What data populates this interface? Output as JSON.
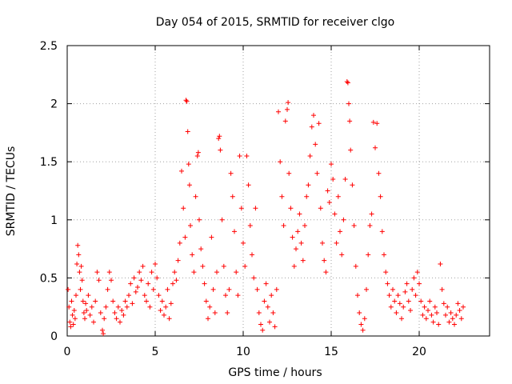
{
  "chart_data": {
    "type": "scatter",
    "title": "Day 054 of 2015, SRMTID for receiver clgo",
    "xlabel": "GPS time / hours",
    "ylabel": "SRMTID / TECUs",
    "xlim": [
      0,
      24
    ],
    "ylim": [
      0,
      2.5
    ],
    "x_ticks": [
      0,
      5,
      10,
      15,
      20
    ],
    "x_tick_labels": [
      "0",
      "5",
      "10",
      "15",
      "20"
    ],
    "y_ticks": [
      0,
      0.5,
      1,
      1.5,
      2,
      2.5
    ],
    "y_tick_labels": [
      "0",
      "0.5",
      "1",
      "1.5",
      "2",
      "2.5"
    ],
    "grid": true,
    "marker": "+",
    "color": "#ff0000",
    "series": [
      {
        "name": "SRMTID",
        "points": [
          [
            0.05,
            0.4
          ],
          [
            0.1,
            0.25
          ],
          [
            0.15,
            0.12
          ],
          [
            0.2,
            0.08
          ],
          [
            0.25,
            0.3
          ],
          [
            0.3,
            0.18
          ],
          [
            0.35,
            0.1
          ],
          [
            0.4,
            0.22
          ],
          [
            0.45,
            0.15
          ],
          [
            0.5,
            0.35
          ],
          [
            0.55,
            0.62
          ],
          [
            0.6,
            0.78
          ],
          [
            0.65,
            0.7
          ],
          [
            0.7,
            0.55
          ],
          [
            0.75,
            0.4
          ],
          [
            0.8,
            0.6
          ],
          [
            0.85,
            0.48
          ],
          [
            0.9,
            0.3
          ],
          [
            0.95,
            0.2
          ],
          [
            1.0,
            0.15
          ],
          [
            1.05,
            0.28
          ],
          [
            1.1,
            0.22
          ],
          [
            1.2,
            0.35
          ],
          [
            1.3,
            0.18
          ],
          [
            1.4,
            0.25
          ],
          [
            1.5,
            0.12
          ],
          [
            1.6,
            0.3
          ],
          [
            1.7,
            0.55
          ],
          [
            1.8,
            0.48
          ],
          [
            1.9,
            0.2
          ],
          [
            2.0,
            0.05
          ],
          [
            2.05,
            0.02
          ],
          [
            2.1,
            0.15
          ],
          [
            2.2,
            0.25
          ],
          [
            2.3,
            0.4
          ],
          [
            2.4,
            0.55
          ],
          [
            2.5,
            0.48
          ],
          [
            2.6,
            0.3
          ],
          [
            2.7,
            0.2
          ],
          [
            2.8,
            0.15
          ],
          [
            2.9,
            0.25
          ],
          [
            3.0,
            0.12
          ],
          [
            3.1,
            0.22
          ],
          [
            3.2,
            0.18
          ],
          [
            3.3,
            0.3
          ],
          [
            3.4,
            0.25
          ],
          [
            3.5,
            0.35
          ],
          [
            3.6,
            0.45
          ],
          [
            3.7,
            0.28
          ],
          [
            3.8,
            0.5
          ],
          [
            3.9,
            0.38
          ],
          [
            4.0,
            0.42
          ],
          [
            4.1,
            0.55
          ],
          [
            4.2,
            0.48
          ],
          [
            4.3,
            0.6
          ],
          [
            4.4,
            0.35
          ],
          [
            4.5,
            0.3
          ],
          [
            4.6,
            0.45
          ],
          [
            4.7,
            0.25
          ],
          [
            4.8,
            0.55
          ],
          [
            4.9,
            0.4
          ],
          [
            5.0,
            0.62
          ],
          [
            5.1,
            0.5
          ],
          [
            5.2,
            0.35
          ],
          [
            5.3,
            0.22
          ],
          [
            5.4,
            0.3
          ],
          [
            5.5,
            0.18
          ],
          [
            5.6,
            0.25
          ],
          [
            5.7,
            0.4
          ],
          [
            5.8,
            0.15
          ],
          [
            5.9,
            0.28
          ],
          [
            6.0,
            0.45
          ],
          [
            6.1,
            0.55
          ],
          [
            6.2,
            0.48
          ],
          [
            6.3,
            0.65
          ],
          [
            6.4,
            0.8
          ],
          [
            6.5,
            1.42
          ],
          [
            6.6,
            1.1
          ],
          [
            6.7,
            0.85
          ],
          [
            6.75,
            2.03
          ],
          [
            6.8,
            2.02
          ],
          [
            6.85,
            1.76
          ],
          [
            6.9,
            1.48
          ],
          [
            6.95,
            1.3
          ],
          [
            7.0,
            0.95
          ],
          [
            7.1,
            0.7
          ],
          [
            7.2,
            0.55
          ],
          [
            7.3,
            1.2
          ],
          [
            7.4,
            1.55
          ],
          [
            7.45,
            1.58
          ],
          [
            7.5,
            1.0
          ],
          [
            7.6,
            0.75
          ],
          [
            7.7,
            0.6
          ],
          [
            7.8,
            0.45
          ],
          [
            7.9,
            0.3
          ],
          [
            8.0,
            0.15
          ],
          [
            8.1,
            0.25
          ],
          [
            8.2,
            0.85
          ],
          [
            8.3,
            0.4
          ],
          [
            8.4,
            0.2
          ],
          [
            8.5,
            0.55
          ],
          [
            8.6,
            1.7
          ],
          [
            8.65,
            1.72
          ],
          [
            8.7,
            1.6
          ],
          [
            8.8,
            1.0
          ],
          [
            8.9,
            0.6
          ],
          [
            9.0,
            0.35
          ],
          [
            9.1,
            0.2
          ],
          [
            9.2,
            0.4
          ],
          [
            9.3,
            1.4
          ],
          [
            9.4,
            1.2
          ],
          [
            9.5,
            0.9
          ],
          [
            9.6,
            0.55
          ],
          [
            9.7,
            0.35
          ],
          [
            9.8,
            1.55
          ],
          [
            9.9,
            1.1
          ],
          [
            10.0,
            0.8
          ],
          [
            10.1,
            0.6
          ],
          [
            10.2,
            1.55
          ],
          [
            10.3,
            1.3
          ],
          [
            10.4,
            0.95
          ],
          [
            10.5,
            0.7
          ],
          [
            10.6,
            0.5
          ],
          [
            10.7,
            1.1
          ],
          [
            10.8,
            0.4
          ],
          [
            10.9,
            0.2
          ],
          [
            11.0,
            0.1
          ],
          [
            11.1,
            0.05
          ],
          [
            11.2,
            0.3
          ],
          [
            11.3,
            0.45
          ],
          [
            11.4,
            0.25
          ],
          [
            11.5,
            0.12
          ],
          [
            11.6,
            0.35
          ],
          [
            11.7,
            0.2
          ],
          [
            11.8,
            0.08
          ],
          [
            11.9,
            0.4
          ],
          [
            12.0,
            1.93
          ],
          [
            12.1,
            1.5
          ],
          [
            12.2,
            1.2
          ],
          [
            12.3,
            0.95
          ],
          [
            12.4,
            1.85
          ],
          [
            12.5,
            1.95
          ],
          [
            12.55,
            2.01
          ],
          [
            12.6,
            1.4
          ],
          [
            12.7,
            1.1
          ],
          [
            12.8,
            0.85
          ],
          [
            12.9,
            0.6
          ],
          [
            13.0,
            0.75
          ],
          [
            13.1,
            0.9
          ],
          [
            13.2,
            1.05
          ],
          [
            13.3,
            0.8
          ],
          [
            13.4,
            0.65
          ],
          [
            13.5,
            0.95
          ],
          [
            13.6,
            1.2
          ],
          [
            13.7,
            1.3
          ],
          [
            13.8,
            1.55
          ],
          [
            13.9,
            1.8
          ],
          [
            14.0,
            1.9
          ],
          [
            14.1,
            1.65
          ],
          [
            14.2,
            1.4
          ],
          [
            14.3,
            1.83
          ],
          [
            14.4,
            1.1
          ],
          [
            14.5,
            0.8
          ],
          [
            14.6,
            0.65
          ],
          [
            14.7,
            0.55
          ],
          [
            14.8,
            1.25
          ],
          [
            14.9,
            1.15
          ],
          [
            15.0,
            1.48
          ],
          [
            15.1,
            1.35
          ],
          [
            15.2,
            1.05
          ],
          [
            15.3,
            0.8
          ],
          [
            15.4,
            1.2
          ],
          [
            15.5,
            0.9
          ],
          [
            15.6,
            0.7
          ],
          [
            15.7,
            1.0
          ],
          [
            15.8,
            1.35
          ],
          [
            15.9,
            2.19
          ],
          [
            15.95,
            2.18
          ],
          [
            16.0,
            2.0
          ],
          [
            16.05,
            1.85
          ],
          [
            16.1,
            1.6
          ],
          [
            16.2,
            1.3
          ],
          [
            16.3,
            0.95
          ],
          [
            16.4,
            0.6
          ],
          [
            16.5,
            0.35
          ],
          [
            16.6,
            0.2
          ],
          [
            16.7,
            0.1
          ],
          [
            16.8,
            0.05
          ],
          [
            16.9,
            0.15
          ],
          [
            17.0,
            0.4
          ],
          [
            17.1,
            0.7
          ],
          [
            17.2,
            0.95
          ],
          [
            17.3,
            1.05
          ],
          [
            17.4,
            1.84
          ],
          [
            17.5,
            1.62
          ],
          [
            17.6,
            1.83
          ],
          [
            17.7,
            1.4
          ],
          [
            17.8,
            1.2
          ],
          [
            17.9,
            0.9
          ],
          [
            18.0,
            0.7
          ],
          [
            18.1,
            0.55
          ],
          [
            18.2,
            0.45
          ],
          [
            18.3,
            0.35
          ],
          [
            18.4,
            0.25
          ],
          [
            18.5,
            0.4
          ],
          [
            18.6,
            0.3
          ],
          [
            18.7,
            0.2
          ],
          [
            18.8,
            0.35
          ],
          [
            18.9,
            0.28
          ],
          [
            19.0,
            0.15
          ],
          [
            19.1,
            0.25
          ],
          [
            19.2,
            0.38
          ],
          [
            19.3,
            0.45
          ],
          [
            19.4,
            0.3
          ],
          [
            19.5,
            0.22
          ],
          [
            19.6,
            0.4
          ],
          [
            19.7,
            0.5
          ],
          [
            19.8,
            0.35
          ],
          [
            19.9,
            0.55
          ],
          [
            20.0,
            0.45
          ],
          [
            20.1,
            0.3
          ],
          [
            20.2,
            0.18
          ],
          [
            20.3,
            0.25
          ],
          [
            20.4,
            0.15
          ],
          [
            20.5,
            0.22
          ],
          [
            20.6,
            0.3
          ],
          [
            20.7,
            0.18
          ],
          [
            20.8,
            0.12
          ],
          [
            20.9,
            0.25
          ],
          [
            21.0,
            0.2
          ],
          [
            21.1,
            0.1
          ],
          [
            21.2,
            0.62
          ],
          [
            21.3,
            0.4
          ],
          [
            21.4,
            0.28
          ],
          [
            21.5,
            0.18
          ],
          [
            21.6,
            0.25
          ],
          [
            21.7,
            0.12
          ],
          [
            21.8,
            0.2
          ],
          [
            21.9,
            0.15
          ],
          [
            22.0,
            0.1
          ],
          [
            22.1,
            0.18
          ],
          [
            22.2,
            0.28
          ],
          [
            22.3,
            0.22
          ],
          [
            22.4,
            0.15
          ],
          [
            22.5,
            0.25
          ]
        ]
      }
    ]
  }
}
